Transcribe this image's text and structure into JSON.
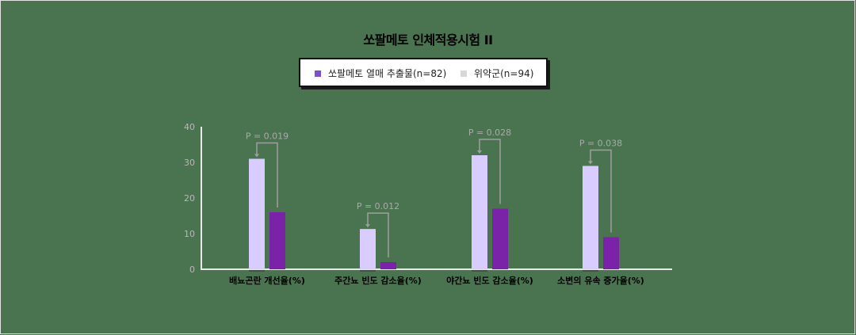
{
  "chart_data": {
    "type": "bar",
    "title": "쏘팔메토 인체적용시험 II",
    "categories": [
      "배뇨곤란 개선율(%)",
      "주간뇨 빈도 감소율(%)",
      "야간뇨 빈도 감소율(%)",
      "소변의 유속 증가율(%)"
    ],
    "series": [
      {
        "name": "위약군(n=94)",
        "color": "#d9ccff",
        "values": [
          31,
          11.3,
          32,
          29
        ]
      },
      {
        "name": "쏘팔메토 열매 추출물(n=82)",
        "color": "#7a22a8",
        "values": [
          16,
          2,
          17,
          9
        ]
      }
    ],
    "p_values": [
      "P = 0.019",
      "P = 0.012",
      "P = 0.028",
      "P = 0.038"
    ],
    "xlabel": "",
    "ylabel": "",
    "ylim": [
      0,
      40
    ],
    "yticks": [
      0,
      10,
      20,
      30,
      40
    ],
    "grid": false,
    "legend_position": "top-center"
  },
  "legend": {
    "items": [
      {
        "label": "쏘팔메토 열매 추출물(n=82)",
        "color": "#7b4fd0"
      },
      {
        "label": "위약군(n=94)",
        "color": "#d8d8d8"
      }
    ]
  },
  "colors": {
    "background": "#4a7350",
    "axis": "#e8e8e8",
    "bracket": "#a0a0a0"
  }
}
